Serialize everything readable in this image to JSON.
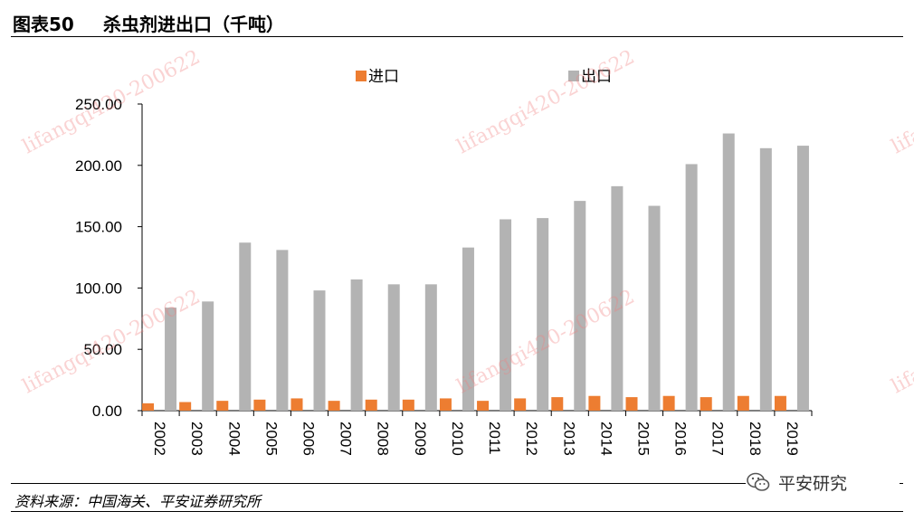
{
  "header": {
    "figure_no": "图表50",
    "title": "杀虫剂进出口（千吨）"
  },
  "footer": {
    "source": "资料来源：中国海关、平安证券研究所",
    "brand": "平安研究"
  },
  "watermark": {
    "text": "lifangqi420-200622",
    "color": "#f08080"
  },
  "chart_data": {
    "type": "bar",
    "categories": [
      "2002",
      "2003",
      "2004",
      "2005",
      "2006",
      "2007",
      "2008",
      "2009",
      "2010",
      "2011",
      "2012",
      "2013",
      "2014",
      "2015",
      "2016",
      "2017",
      "2018",
      "2019"
    ],
    "series": [
      {
        "name": "进口",
        "color": "#ed7d31",
        "values": [
          6,
          7,
          8,
          9,
          10,
          8,
          9,
          9,
          10,
          8,
          10,
          11,
          12,
          11,
          12,
          11,
          12,
          12
        ]
      },
      {
        "name": "出口",
        "color": "#b3b3b3",
        "values": [
          84,
          89,
          137,
          131,
          98,
          107,
          103,
          103,
          133,
          156,
          157,
          171,
          183,
          167,
          201,
          226,
          214,
          216
        ]
      }
    ],
    "yticks": [
      "0.00",
      "50.00",
      "100.00",
      "150.00",
      "200.00",
      "250.00"
    ],
    "ylim": [
      0,
      250
    ],
    "legend_position": "top",
    "grid": false
  }
}
